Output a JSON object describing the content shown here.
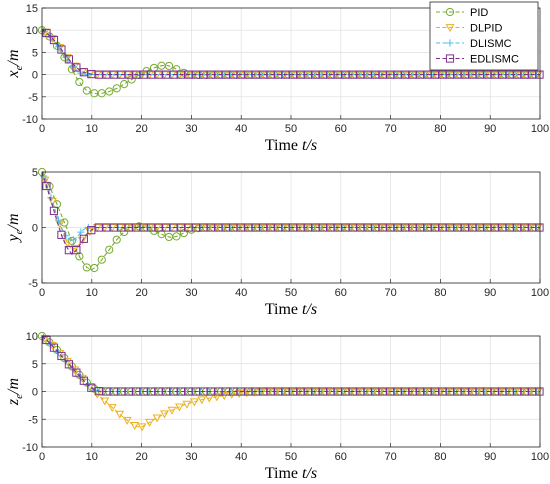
{
  "chart_data": [
    {
      "type": "line",
      "ylabel_main": "x",
      "ylabel_sub": "e",
      "ylabel_unit": "/m",
      "xlabel_text": "Time ",
      "xlabel_var": "t/s",
      "xlim": [
        0,
        100
      ],
      "ylim": [
        -10,
        15
      ],
      "xticks": [
        0,
        10,
        20,
        30,
        40,
        50,
        60,
        70,
        80,
        90,
        100
      ],
      "yticks": [
        -10,
        -5,
        0,
        5,
        10,
        15
      ],
      "grid": true,
      "legend": "top-right",
      "series": [
        {
          "name": "PID",
          "color": "#77AC30",
          "marker": "circle",
          "x": [
            0,
            1,
            2,
            3,
            4,
            5,
            6,
            7,
            8,
            9,
            10,
            11,
            12,
            13,
            14,
            15,
            16,
            17,
            18,
            19,
            20,
            21,
            22,
            23,
            24,
            25,
            26,
            27,
            28,
            29,
            30,
            32,
            35,
            40,
            100
          ],
          "y": [
            10,
            9.2,
            8,
            6.5,
            4.8,
            3,
            1.2,
            -0.8,
            -2.5,
            -3.6,
            -4.1,
            -4.3,
            -4.2,
            -4,
            -3.6,
            -3.1,
            -2.5,
            -1.8,
            -1.1,
            -0.4,
            0.2,
            0.8,
            1.3,
            1.7,
            2,
            2.1,
            1.8,
            1.2,
            0.6,
            0.2,
            0,
            -0.1,
            0,
            0,
            0
          ]
        },
        {
          "name": "DLPID",
          "color": "#EDB120",
          "marker": "triangle-down",
          "x": [
            0,
            1,
            2,
            3,
            4,
            5,
            6,
            7,
            8,
            9,
            10,
            11,
            12,
            100
          ],
          "y": [
            10,
            9.3,
            8.3,
            7,
            5.5,
            4,
            2.6,
            1.5,
            0.7,
            0.3,
            0.1,
            0,
            0,
            0
          ]
        },
        {
          "name": "DLISMC",
          "color": "#4DBEEE",
          "marker": "plus",
          "x": [
            0,
            1,
            2,
            3,
            4,
            5,
            6,
            7,
            8,
            9,
            10,
            100
          ],
          "y": [
            10,
            9.2,
            8.1,
            6.7,
            5.2,
            3.6,
            2.1,
            0.9,
            0.2,
            0,
            0,
            0
          ]
        },
        {
          "name": "EDLISMC",
          "color": "#7E2F8E",
          "marker": "square",
          "x": [
            0,
            1,
            2,
            3,
            4,
            5,
            6,
            7,
            8,
            9,
            10,
            11,
            12,
            100
          ],
          "y": [
            10,
            9.3,
            8.3,
            7,
            5.5,
            4,
            2.6,
            1.5,
            0.7,
            0.3,
            0.1,
            0,
            0,
            0
          ]
        }
      ]
    },
    {
      "type": "line",
      "ylabel_main": "y",
      "ylabel_sub": "e",
      "ylabel_unit": "/m",
      "xlabel_text": "Time ",
      "xlabel_var": "t/s",
      "xlim": [
        0,
        100
      ],
      "ylim": [
        -5,
        5
      ],
      "xticks": [
        0,
        10,
        20,
        30,
        40,
        50,
        60,
        70,
        80,
        90,
        100
      ],
      "yticks": [
        -5,
        0,
        5
      ],
      "grid": true,
      "series": [
        {
          "name": "PID",
          "color": "#77AC30",
          "marker": "circle",
          "x": [
            0,
            1,
            2,
            3,
            4,
            5,
            6,
            7,
            8,
            9,
            10,
            11,
            12,
            13,
            14,
            15,
            16,
            17,
            18,
            19,
            20,
            21,
            22,
            23,
            24,
            25,
            26,
            27,
            28,
            29,
            30,
            32,
            35,
            100
          ],
          "y": [
            5,
            4.2,
            3.2,
            2.1,
            1,
            -0.1,
            -1.2,
            -2.2,
            -3,
            -3.6,
            -3.8,
            -3.5,
            -2.9,
            -2.3,
            -1.7,
            -1.1,
            -0.6,
            -0.2,
            0,
            0.1,
            0.1,
            0,
            -0.2,
            -0.4,
            -0.6,
            -0.8,
            -0.9,
            -0.8,
            -0.6,
            -0.4,
            -0.2,
            0,
            0,
            0
          ]
        },
        {
          "name": "DLPID",
          "color": "#EDB120",
          "marker": "triangle-down",
          "x": [
            0,
            1,
            2,
            3,
            4,
            5,
            6,
            7,
            8,
            9,
            10,
            11,
            12,
            100
          ],
          "y": [
            5,
            3.8,
            2.5,
            1.1,
            -0.2,
            -1.3,
            -2,
            -1.8,
            -1.2,
            -0.6,
            -0.2,
            0,
            0,
            0
          ]
        },
        {
          "name": "DLISMC",
          "color": "#4DBEEE",
          "marker": "plus",
          "x": [
            0,
            1,
            2,
            3,
            4,
            5,
            6,
            7,
            8,
            9,
            10,
            100
          ],
          "y": [
            5,
            3.8,
            2.4,
            1,
            -0.1,
            -0.9,
            -1.2,
            -0.9,
            -0.3,
            0,
            0,
            0
          ]
        },
        {
          "name": "EDLISMC",
          "color": "#7E2F8E",
          "marker": "square",
          "x": [
            0,
            1,
            2,
            3,
            4,
            5,
            6,
            7,
            8,
            9,
            10,
            11,
            12,
            100
          ],
          "y": [
            5,
            3.6,
            2.1,
            0.6,
            -0.8,
            -1.8,
            -2.4,
            -2,
            -1.3,
            -0.6,
            -0.2,
            0,
            0,
            0
          ]
        }
      ]
    },
    {
      "type": "line",
      "ylabel_main": "z",
      "ylabel_sub": "e",
      "ylabel_unit": "/m",
      "xlabel_text": "Time ",
      "xlabel_var": "t/s",
      "xlim": [
        0,
        100
      ],
      "ylim": [
        -10,
        10
      ],
      "xticks": [
        0,
        10,
        20,
        30,
        40,
        50,
        60,
        70,
        80,
        90,
        100
      ],
      "yticks": [
        -10,
        -5,
        0,
        5,
        10
      ],
      "grid": true,
      "series": [
        {
          "name": "PID",
          "color": "#77AC30",
          "marker": "circle",
          "x": [
            0,
            1,
            2,
            3,
            4,
            5,
            6,
            7,
            8,
            9,
            10,
            11,
            12,
            13,
            100
          ],
          "y": [
            10,
            9.3,
            8.4,
            7.5,
            6.5,
            5.5,
            4.5,
            3.5,
            2.5,
            1.6,
            0.8,
            0.2,
            0,
            0,
            0
          ]
        },
        {
          "name": "DLPID",
          "color": "#EDB120",
          "marker": "triangle-down",
          "x": [
            0,
            1,
            2,
            3,
            4,
            5,
            6,
            7,
            8,
            9,
            10,
            11,
            12,
            13,
            14,
            15,
            16,
            17,
            18,
            19,
            20,
            21,
            22,
            23,
            24,
            25,
            26,
            27,
            28,
            29,
            30,
            32,
            34,
            36,
            38,
            40,
            42,
            45,
            100
          ],
          "y": [
            10,
            9.3,
            8.4,
            7.5,
            6.5,
            5.5,
            4.5,
            3.5,
            2.5,
            1.5,
            0.5,
            -0.4,
            -1.2,
            -2,
            -2.8,
            -3.6,
            -4.4,
            -5.1,
            -5.8,
            -6.3,
            -6.4,
            -5.9,
            -5.3,
            -4.8,
            -4.3,
            -3.8,
            -3.4,
            -3,
            -2.6,
            -2.3,
            -2,
            -1.5,
            -1.1,
            -0.8,
            -0.5,
            -0.3,
            -0.1,
            0,
            0
          ]
        },
        {
          "name": "DLISMC",
          "color": "#4DBEEE",
          "marker": "plus",
          "x": [
            0,
            1,
            2,
            3,
            4,
            5,
            6,
            7,
            8,
            9,
            10,
            11,
            12,
            100
          ],
          "y": [
            10,
            9.2,
            8.3,
            7.3,
            6.3,
            5.3,
            4.3,
            3.3,
            2.3,
            1.4,
            0.6,
            0.1,
            0,
            0
          ]
        },
        {
          "name": "EDLISMC",
          "color": "#7E2F8E",
          "marker": "square",
          "x": [
            0,
            1,
            2,
            3,
            4,
            5,
            6,
            7,
            8,
            9,
            10,
            11,
            12,
            100
          ],
          "y": [
            10,
            9.2,
            8.3,
            7.3,
            6.3,
            5.3,
            4.3,
            3.3,
            2.3,
            1.4,
            0.6,
            0.1,
            0,
            0
          ]
        }
      ]
    }
  ]
}
